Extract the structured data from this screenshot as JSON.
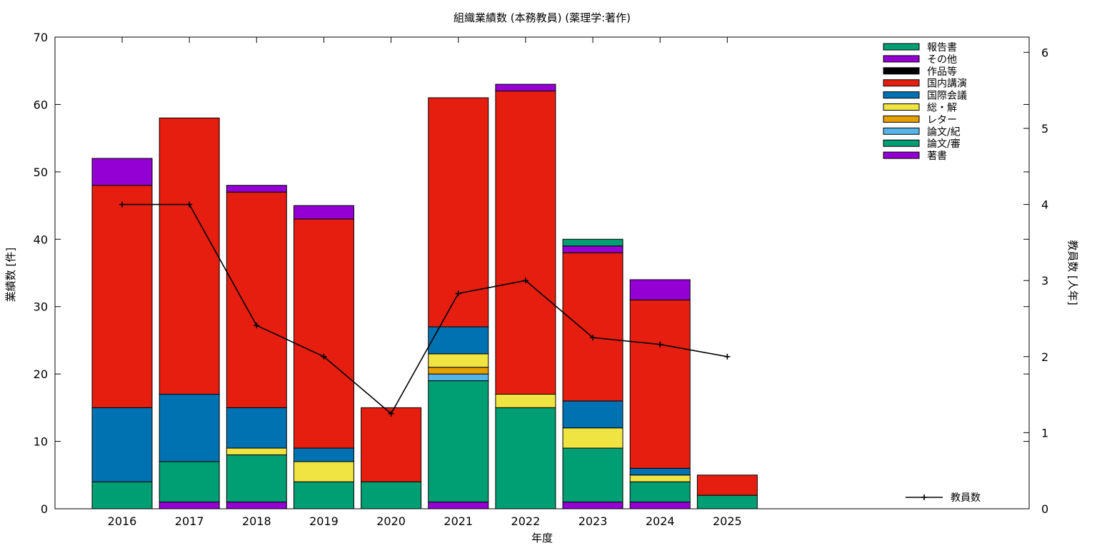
{
  "chart_data": {
    "type": "bar",
    "title": "組織業績数 (本務教員) (薬理学:著作)",
    "xlabel": "年度",
    "ylabel": "業績数 [件]",
    "y2label": "教員数 [人年]",
    "ylim": [
      0,
      70
    ],
    "y2lim": [
      0,
      6.2
    ],
    "yticks": [
      0,
      10,
      20,
      30,
      40,
      50,
      60,
      70
    ],
    "y2ticks": [
      0,
      1,
      2,
      3,
      4,
      5,
      6
    ],
    "categories": [
      "2016",
      "2017",
      "2018",
      "2019",
      "2020",
      "2021",
      "2022",
      "2023",
      "2024",
      "2025"
    ],
    "series": [
      {
        "name": "著書",
        "color": "#9400d3",
        "values": [
          0,
          1,
          1,
          0,
          0,
          1,
          0,
          1,
          1,
          0
        ]
      },
      {
        "name": "論文/審",
        "color": "#009e73",
        "values": [
          4,
          6,
          7,
          4,
          4,
          18,
          15,
          8,
          3,
          2
        ]
      },
      {
        "name": "論文/紀",
        "color": "#56b4e9",
        "values": [
          0,
          0,
          0,
          0,
          0,
          1,
          0,
          0,
          0,
          0
        ]
      },
      {
        "name": "レター",
        "color": "#e69f00",
        "values": [
          0,
          0,
          0,
          0,
          0,
          1,
          0,
          0,
          0,
          0
        ]
      },
      {
        "name": "総・解",
        "color": "#f0e442",
        "values": [
          0,
          0,
          1,
          3,
          0,
          2,
          2,
          3,
          1,
          0
        ]
      },
      {
        "name": "国際会議",
        "color": "#0072b2",
        "values": [
          11,
          10,
          6,
          2,
          0,
          4,
          0,
          4,
          1,
          0
        ]
      },
      {
        "name": "国内講演",
        "color": "#e51e10",
        "values": [
          33,
          41,
          32,
          34,
          11,
          34,
          45,
          22,
          25,
          3
        ]
      },
      {
        "name": "作品等",
        "color": "#000000",
        "values": [
          0,
          0,
          0,
          0,
          0,
          0,
          0,
          0,
          0,
          0
        ]
      },
      {
        "name": "その他",
        "color": "#9400d3",
        "values": [
          4,
          0,
          1,
          2,
          0,
          0,
          1,
          1,
          3,
          0
        ]
      },
      {
        "name": "報告書",
        "color": "#009e73",
        "values": [
          0,
          0,
          0,
          0,
          0,
          0,
          0,
          1,
          0,
          0
        ]
      }
    ],
    "line": {
      "name": "教員数",
      "color": "#000000",
      "values": [
        4.0,
        4.0,
        2.41,
        2.0,
        1.25,
        2.83,
        3.0,
        2.25,
        2.16,
        2.0
      ]
    },
    "legend_position": "top-right"
  }
}
